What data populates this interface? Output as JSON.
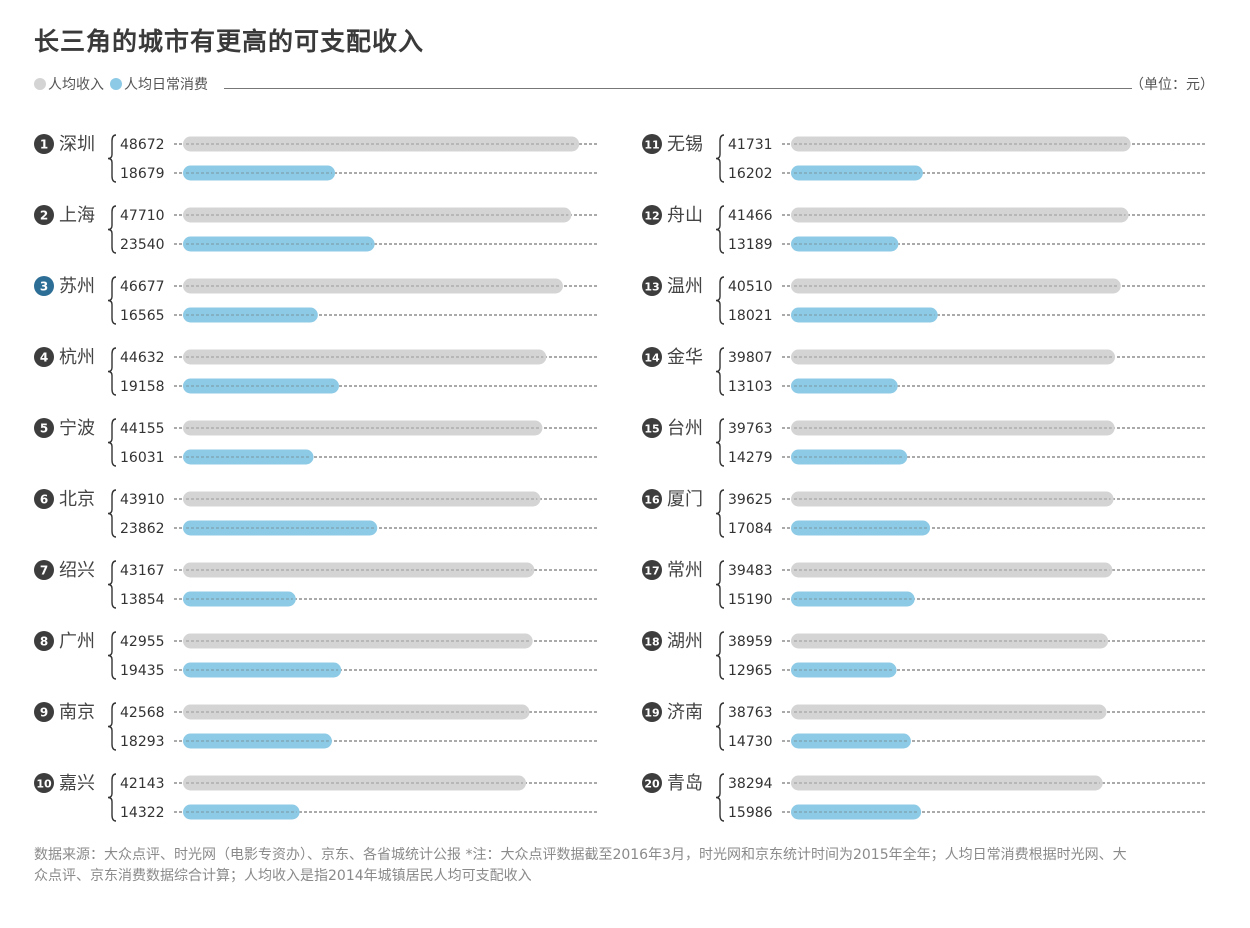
{
  "title": "长三角的城市有更高的可支配收入",
  "legend": {
    "income_label": "人均收入",
    "spend_label": "人均日常消费"
  },
  "unit": "（单位：元）",
  "footnote": {
    "line1": "数据来源：大众点评、时光网（电影专资办）、京东、各省城统计公报 *注：大众点评数据截至2016年3月，时光网和京东统计时间为2015年全年；人均日常消费根据时光网、大",
    "line2": "众点评、京东消费数据综合计算；人均收入是指2014年城镇居民人均可支配收入"
  },
  "colors": {
    "income": "#d4d4d4",
    "spend": "#8dcae6",
    "rank_badge": "#3d3d3d",
    "rank_badge_highlight": "#2d6e96",
    "text": "#333333"
  },
  "chart_data": {
    "type": "bar",
    "orientation": "horizontal",
    "xlim": [
      0,
      50000
    ],
    "series": [
      {
        "name": "人均收入",
        "key": "income"
      },
      {
        "name": "人均日常消费",
        "key": "spend"
      }
    ],
    "cities": [
      {
        "rank": "1",
        "name": "深圳",
        "income": 48672,
        "spend": 18679,
        "highlight": false
      },
      {
        "rank": "2",
        "name": "上海",
        "income": 47710,
        "spend": 23540,
        "highlight": false
      },
      {
        "rank": "3",
        "name": "苏州",
        "income": 46677,
        "spend": 16565,
        "highlight": true
      },
      {
        "rank": "4",
        "name": "杭州",
        "income": 44632,
        "spend": 19158,
        "highlight": false
      },
      {
        "rank": "5",
        "name": "宁波",
        "income": 44155,
        "spend": 16031,
        "highlight": false
      },
      {
        "rank": "6",
        "name": "北京",
        "income": 43910,
        "spend": 23862,
        "highlight": false
      },
      {
        "rank": "7",
        "name": "绍兴",
        "income": 43167,
        "spend": 13854,
        "highlight": false
      },
      {
        "rank": "8",
        "name": "广州",
        "income": 42955,
        "spend": 19435,
        "highlight": false
      },
      {
        "rank": "9",
        "name": "南京",
        "income": 42568,
        "spend": 18293,
        "highlight": false
      },
      {
        "rank": "10",
        "name": "嘉兴",
        "income": 42143,
        "spend": 14322,
        "highlight": false
      },
      {
        "rank": "11",
        "name": "无锡",
        "income": 41731,
        "spend": 16202,
        "highlight": false
      },
      {
        "rank": "12",
        "name": "舟山",
        "income": 41466,
        "spend": 13189,
        "highlight": false
      },
      {
        "rank": "13",
        "name": "温州",
        "income": 40510,
        "spend": 18021,
        "highlight": false
      },
      {
        "rank": "14",
        "name": "金华",
        "income": 39807,
        "spend": 13103,
        "highlight": false
      },
      {
        "rank": "15",
        "name": "台州",
        "income": 39763,
        "spend": 14279,
        "highlight": false
      },
      {
        "rank": "16",
        "name": "厦门",
        "income": 39625,
        "spend": 17084,
        "highlight": false
      },
      {
        "rank": "17",
        "name": "常州",
        "income": 39483,
        "spend": 15190,
        "highlight": false
      },
      {
        "rank": "18",
        "name": "湖州",
        "income": 38959,
        "spend": 12965,
        "highlight": false
      },
      {
        "rank": "19",
        "name": "济南",
        "income": 38763,
        "spend": 14730,
        "highlight": false
      },
      {
        "rank": "20",
        "name": "青岛",
        "income": 38294,
        "spend": 15986,
        "highlight": false
      }
    ]
  }
}
